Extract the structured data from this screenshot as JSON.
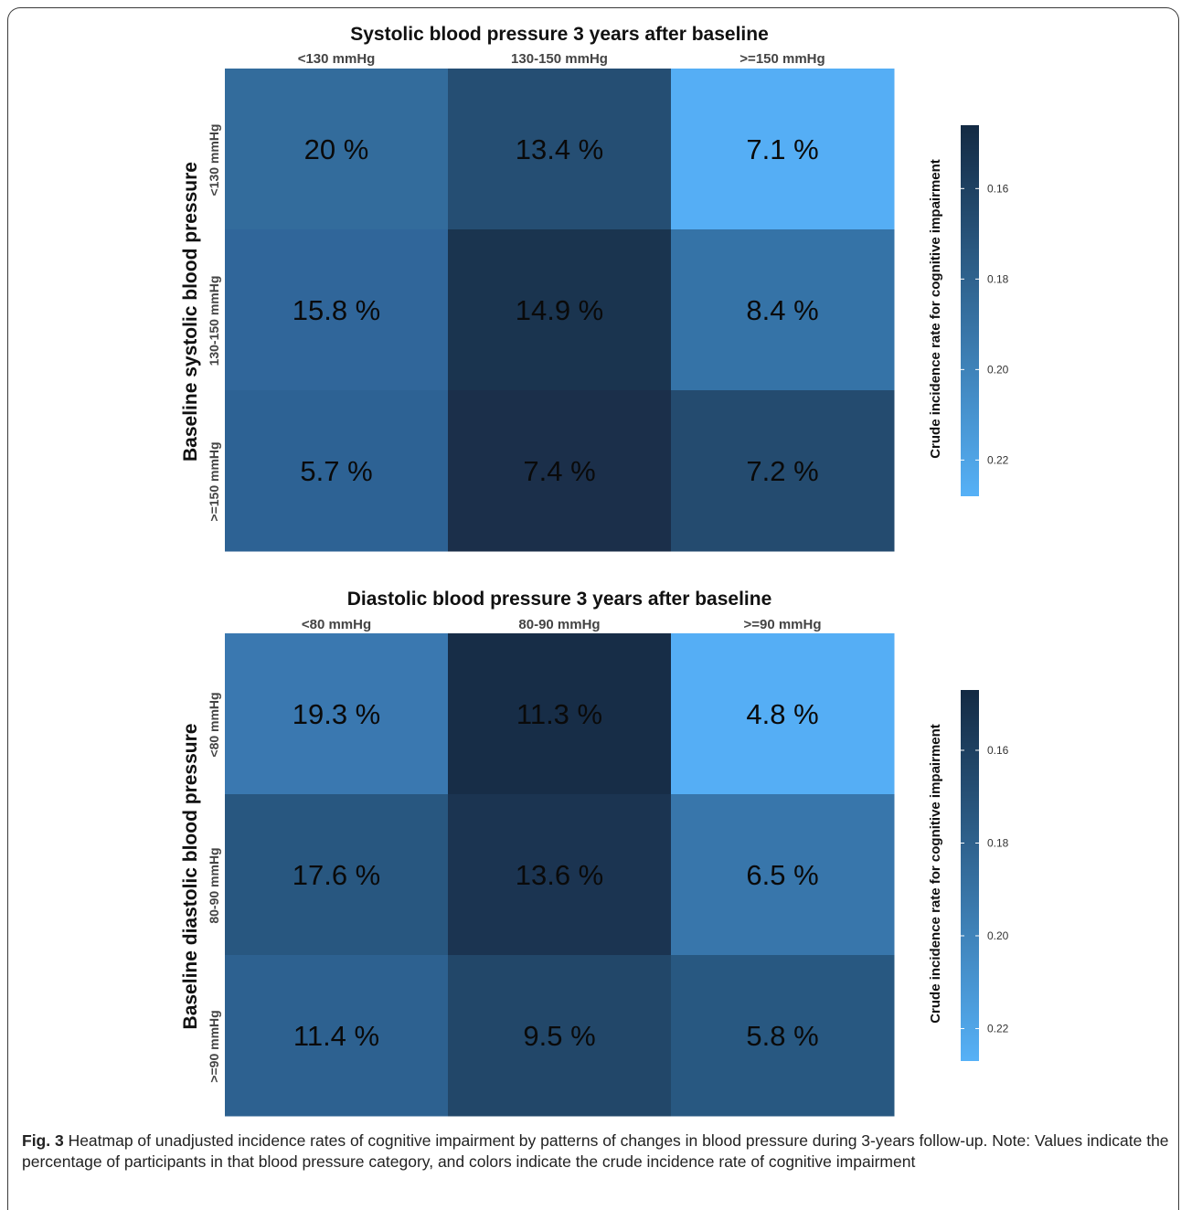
{
  "chart_data": [
    {
      "type": "heatmap",
      "title": "Systolic blood pressure 3 years after baseline",
      "ylabel": "Baseline systolic blood pressure",
      "x_categories": [
        "<130 mmHg",
        "130-150 mmHg",
        ">=150 mmHg"
      ],
      "y_categories": [
        "<130 mmHg",
        "130-150 mmHg",
        ">=150 mmHg"
      ],
      "cell_labels": [
        [
          "20 %",
          "13.4 %",
          "7.1 %"
        ],
        [
          "15.8 %",
          "14.9 %",
          "8.4 %"
        ],
        [
          "5.7 %",
          "7.4 %",
          "7.2 %"
        ]
      ],
      "cell_colors": [
        [
          "#336c9c",
          "#254e73",
          "#55aef5"
        ],
        [
          "#30669a",
          "#1a344f",
          "#3573a7"
        ],
        [
          "#2d6294",
          "#1b2f4a",
          "#244b6f"
        ]
      ],
      "colorbar": {
        "title": "Crude incidence rate for cognitive impairment",
        "ticks": [
          "0.16",
          "0.18",
          "0.20",
          "0.22"
        ],
        "range": [
          0.146,
          0.228
        ],
        "color_dark": "#132a43",
        "color_light": "#56b1f7"
      }
    },
    {
      "type": "heatmap",
      "title": "Diastolic blood pressure 3 years after baseline",
      "ylabel": "Baseline diastolic blood pressure",
      "x_categories": [
        "<80 mmHg",
        "80-90 mmHg",
        ">=90 mmHg"
      ],
      "y_categories": [
        "<80 mmHg",
        "80-90 mmHg",
        ">=90 mmHg"
      ],
      "cell_labels": [
        [
          "19.3 %",
          "11.3 %",
          "4.8 %"
        ],
        [
          "17.6 %",
          "13.6 %",
          "6.5 %"
        ],
        [
          "11.4 %",
          "9.5 %",
          "5.8 %"
        ]
      ],
      "cell_colors": [
        [
          "#3a78b0",
          "#172d47",
          "#55aef5"
        ],
        [
          "#285780",
          "#1b3451",
          "#3876ab"
        ],
        [
          "#2d6190",
          "#224769",
          "#285881"
        ]
      ],
      "colorbar": {
        "title": "Crude incidence rate for cognitive impairment",
        "ticks": [
          "0.16",
          "0.18",
          "0.20",
          "0.22"
        ],
        "range": [
          0.147,
          0.227
        ],
        "color_dark": "#132a43",
        "color_light": "#56b1f7"
      }
    }
  ],
  "caption": {
    "label": "Fig. 3",
    "text": " Heatmap of unadjusted incidence rates of cognitive impairment by patterns of changes in blood pressure during 3-years follow-up. Note: Values indicate the percentage of participants in that blood pressure category, and colors indicate the crude incidence rate of cognitive impairment"
  }
}
